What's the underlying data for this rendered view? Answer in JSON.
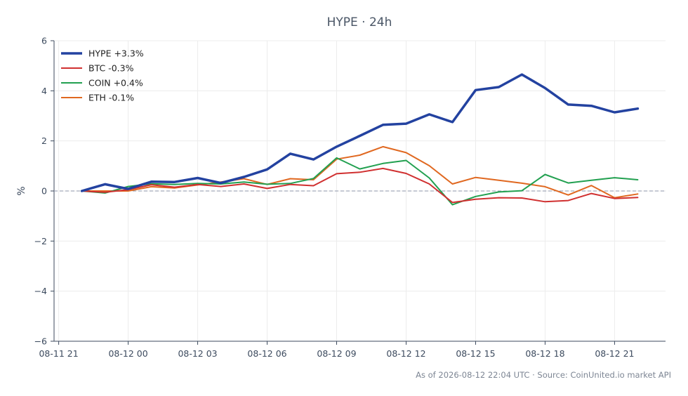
{
  "chart_data": {
    "type": "line",
    "title": "HYPE · 24h",
    "xlabel": "",
    "ylabel": "%",
    "ylim": [
      -6,
      6
    ],
    "y_ticks": [
      -6,
      -4,
      -2,
      0,
      2,
      4,
      6
    ],
    "y_tick_labels": [
      "−6",
      "−4",
      "−2",
      "0",
      "2",
      "4",
      "6"
    ],
    "x_tick_labels": [
      "08-11 21",
      "08-12 00",
      "08-12 03",
      "08-12 06",
      "08-12 09",
      "08-12 12",
      "08-12 15",
      "08-12 18",
      "08-12 21"
    ],
    "x_tick_hours": [
      0,
      3,
      6,
      9,
      12,
      15,
      18,
      21,
      24
    ],
    "x_range_hours": [
      -0.2,
      26.2
    ],
    "x_hours": [
      1,
      2,
      3,
      4,
      5,
      6,
      7,
      8,
      9,
      10,
      11,
      12,
      13,
      14,
      15,
      16,
      17,
      18,
      19,
      20,
      21,
      22,
      23,
      24,
      25
    ],
    "grid": true,
    "zero_line": true,
    "legend_position": "top-left",
    "series": [
      {
        "name": "HYPE +3.3%",
        "color": "#2342a0",
        "width": 3.5,
        "values": [
          0.0,
          0.27,
          0.08,
          0.37,
          0.36,
          0.52,
          0.32,
          0.56,
          0.86,
          1.49,
          1.26,
          1.77,
          2.2,
          2.64,
          2.69,
          3.06,
          2.75,
          4.03,
          4.15,
          4.65,
          4.11,
          3.45,
          3.4,
          3.14,
          3.29
        ]
      },
      {
        "name": "BTC -0.3%",
        "color": "#d03030",
        "width": 2,
        "values": [
          0.0,
          -0.05,
          0.05,
          0.25,
          0.15,
          0.26,
          0.18,
          0.28,
          0.1,
          0.26,
          0.21,
          0.69,
          0.75,
          0.9,
          0.7,
          0.28,
          -0.46,
          -0.33,
          -0.27,
          -0.28,
          -0.43,
          -0.38,
          -0.1,
          -0.3,
          -0.26
        ]
      },
      {
        "name": "COIN +0.4%",
        "color": "#22a050",
        "width": 2,
        "values": [
          0.0,
          -0.08,
          0.18,
          0.29,
          0.26,
          0.3,
          0.28,
          0.36,
          0.27,
          0.3,
          0.5,
          1.32,
          0.88,
          1.1,
          1.22,
          0.52,
          -0.55,
          -0.22,
          -0.04,
          0.01,
          0.66,
          0.32,
          0.43,
          0.53,
          0.45
        ]
      },
      {
        "name": "ETH -0.1%",
        "color": "#e06820",
        "width": 2,
        "values": [
          0.0,
          0.0,
          0.0,
          0.17,
          0.12,
          0.24,
          0.36,
          0.49,
          0.26,
          0.49,
          0.45,
          1.27,
          1.43,
          1.77,
          1.53,
          1.01,
          0.28,
          0.54,
          0.43,
          0.31,
          0.17,
          -0.16,
          0.22,
          -0.27,
          -0.12
        ]
      }
    ]
  },
  "footer": "As of 2026-08-12 22:04 UTC · Source: CoinUnited.io market API"
}
